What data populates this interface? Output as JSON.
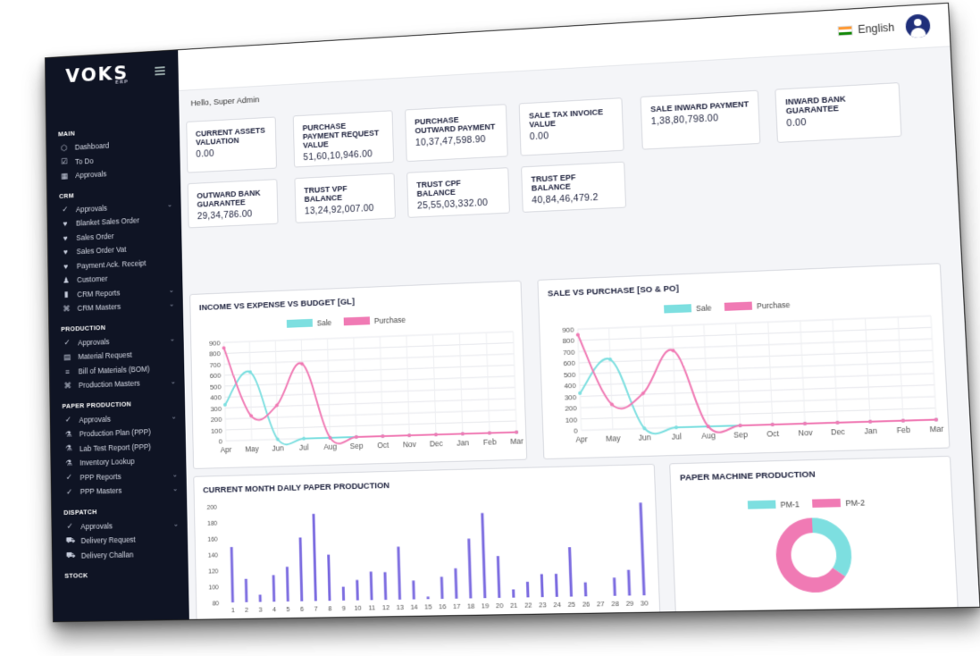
{
  "header": {
    "language": "English"
  },
  "brand": {
    "logo_text": "VOKS",
    "logo_sub": "ERP"
  },
  "greeting": "Hello, Super Admin",
  "sidebar": {
    "sections": [
      {
        "title": "MAIN",
        "items": [
          {
            "label": "Dashboard",
            "icon": "cube-icon",
            "glyph": "⬡",
            "chevron": false
          },
          {
            "label": "To Do",
            "icon": "calendar-check-icon",
            "glyph": "☑",
            "chevron": false
          },
          {
            "label": "Approvals",
            "icon": "building-icon",
            "glyph": "▦",
            "chevron": false
          }
        ]
      },
      {
        "title": "CRM",
        "items": [
          {
            "label": "Approvals",
            "icon": "check-circle-icon",
            "glyph": "✓",
            "chevron": true
          },
          {
            "label": "Blanket Sales Order",
            "icon": "shirt-icon",
            "glyph": "♥",
            "chevron": false
          },
          {
            "label": "Sales Order",
            "icon": "shirt-icon",
            "glyph": "♥",
            "chevron": false
          },
          {
            "label": "Sales Order Vat",
            "icon": "shirt-icon",
            "glyph": "♥",
            "chevron": false
          },
          {
            "label": "Payment Ack. Receipt",
            "icon": "shirt-icon",
            "glyph": "♥",
            "chevron": false
          },
          {
            "label": "Customer",
            "icon": "user-plus-icon",
            "glyph": "♟",
            "chevron": false
          },
          {
            "label": "CRM Reports",
            "icon": "bar-chart-icon",
            "glyph": "▮",
            "chevron": true
          },
          {
            "label": "CRM Masters",
            "icon": "command-icon",
            "glyph": "⌘",
            "chevron": true
          }
        ]
      },
      {
        "title": "PRODUCTION",
        "items": [
          {
            "label": "Approvals",
            "icon": "check-circle-icon",
            "glyph": "✓",
            "chevron": true
          },
          {
            "label": "Material Request",
            "icon": "document-icon",
            "glyph": "▤",
            "chevron": false
          },
          {
            "label": "Bill of Materials (BOM)",
            "icon": "sliders-icon",
            "glyph": "≡",
            "chevron": false
          },
          {
            "label": "Production Masters",
            "icon": "command-icon",
            "glyph": "⌘",
            "chevron": true
          }
        ]
      },
      {
        "title": "PAPER PRODUCTION",
        "items": [
          {
            "label": "Approvals",
            "icon": "check-circle-icon",
            "glyph": "✓",
            "chevron": true
          },
          {
            "label": "Production Plan (PPP)",
            "icon": "flask-icon",
            "glyph": "⚗",
            "chevron": false
          },
          {
            "label": "Lab Test Report (PPP)",
            "icon": "flask-icon",
            "glyph": "⚗",
            "chevron": false
          },
          {
            "label": "Inventory Lookup",
            "icon": "flask-icon",
            "glyph": "⚗",
            "chevron": false
          },
          {
            "label": "PPP Reports",
            "icon": "check-circle-icon",
            "glyph": "✓",
            "chevron": true
          },
          {
            "label": "PPP Masters",
            "icon": "check-circle-icon",
            "glyph": "✓",
            "chevron": true
          }
        ]
      },
      {
        "title": "DISPATCH",
        "items": [
          {
            "label": "Approvals",
            "icon": "check-circle-icon",
            "glyph": "✓",
            "chevron": true
          },
          {
            "label": "Delivery Request",
            "icon": "truck-icon",
            "glyph": "⛟",
            "chevron": false
          },
          {
            "label": "Delivery Challan",
            "icon": "truck-icon",
            "glyph": "⛟",
            "chevron": false
          }
        ]
      },
      {
        "title": "STOCK",
        "items": []
      }
    ]
  },
  "cards": [
    {
      "label": "CURRENT ASSETS VALUATION",
      "value": "0.00"
    },
    {
      "label": "PURCHASE PAYMENT REQUEST VALUE",
      "value": "51,60,10,946.00"
    },
    {
      "label": "PURCHASE OUTWARD PAYMENT",
      "value": "10,37,47,598.90"
    },
    {
      "label": "SALE TAX INVOICE VALUE",
      "value": "0.00"
    },
    {
      "label": "SALE INWARD PAYMENT",
      "value": "1,38,80,798.00"
    },
    {
      "label": "INWARD BANK GUARANTEE",
      "value": "0.00"
    },
    {
      "label": "OUTWARD BANK GUARANTEE",
      "value": "29,34,786.00"
    },
    {
      "label": "TRUST VPF BALANCE",
      "value": "13,24,92,007.00"
    },
    {
      "label": "TRUST CPF BALANCE",
      "value": "25,55,03,332.00"
    },
    {
      "label": "TRUST EPF BALANCE",
      "value": "40,84,46,479.2"
    }
  ],
  "colors": {
    "sale": "#7ddfe0",
    "purchase": "#f07ab4",
    "bar": "#7b6be0"
  },
  "chart_data": [
    {
      "type": "line",
      "title": "INCOME VS EXPENSE VS BUDGET [GL]",
      "categories": [
        "Apr",
        "May",
        "Jun",
        "Jul",
        "Aug",
        "Sep",
        "Oct",
        "Nov",
        "Dec",
        "Jan",
        "Feb",
        "Mar"
      ],
      "series": [
        {
          "name": "Sale",
          "values": [
            330,
            620,
            0,
            0,
            0,
            0,
            0,
            0,
            0,
            0,
            0,
            0
          ]
        },
        {
          "name": "Purchase",
          "values": [
            850,
            220,
            310,
            680,
            0,
            0,
            0,
            0,
            0,
            0,
            0,
            0
          ]
        }
      ],
      "ylim": [
        0,
        900
      ],
      "yticks": [
        0,
        100,
        200,
        300,
        400,
        500,
        600,
        700,
        800,
        900
      ],
      "legend": "top-center",
      "grid": true
    },
    {
      "type": "line",
      "title": "SALE VS PURCHASE [SO & PO]",
      "categories": [
        "Apr",
        "May",
        "Jun",
        "Jul",
        "Aug",
        "Sep",
        "Oct",
        "Nov",
        "Dec",
        "Jan",
        "Feb",
        "Mar"
      ],
      "series": [
        {
          "name": "Sale",
          "values": [
            330,
            620,
            0,
            0,
            0,
            0,
            0,
            0,
            0,
            0,
            0,
            0
          ]
        },
        {
          "name": "Purchase",
          "values": [
            850,
            220,
            310,
            680,
            0,
            0,
            0,
            0,
            0,
            0,
            0,
            0
          ]
        }
      ],
      "ylim": [
        0,
        900
      ],
      "yticks": [
        0,
        100,
        200,
        300,
        400,
        500,
        600,
        700,
        800,
        900
      ],
      "legend": "top-center",
      "grid": true
    },
    {
      "type": "bar",
      "title": "CURRENT MONTH DAILY PAPER PRODUCTION",
      "categories": [
        "1",
        "2",
        "3",
        "4",
        "5",
        "6",
        "7",
        "8",
        "9",
        "10",
        "11",
        "12",
        "13",
        "14",
        "15",
        "16",
        "17",
        "18",
        "19",
        "20",
        "21",
        "22",
        "23",
        "24",
        "25",
        "26",
        "27",
        "28",
        "29",
        "30"
      ],
      "values": [
        149,
        109,
        89,
        113,
        123,
        159,
        188,
        137,
        97,
        105,
        115,
        114,
        145,
        103,
        83,
        107,
        117,
        153,
        184,
        131,
        90,
        99,
        108,
        108,
        140,
        97,
        75,
        102,
        111,
        192
      ],
      "ylim": [
        80,
        200
      ],
      "yticks": [
        80,
        100,
        120,
        140,
        160,
        180,
        200
      ],
      "grid": false
    },
    {
      "type": "pie",
      "title": "PAPER MACHINE PRODUCTION",
      "donut": true,
      "slices": [
        {
          "name": "PM-1",
          "value": 35
        },
        {
          "name": "PM-2",
          "value": 65
        }
      ],
      "legend": "top-center"
    }
  ]
}
